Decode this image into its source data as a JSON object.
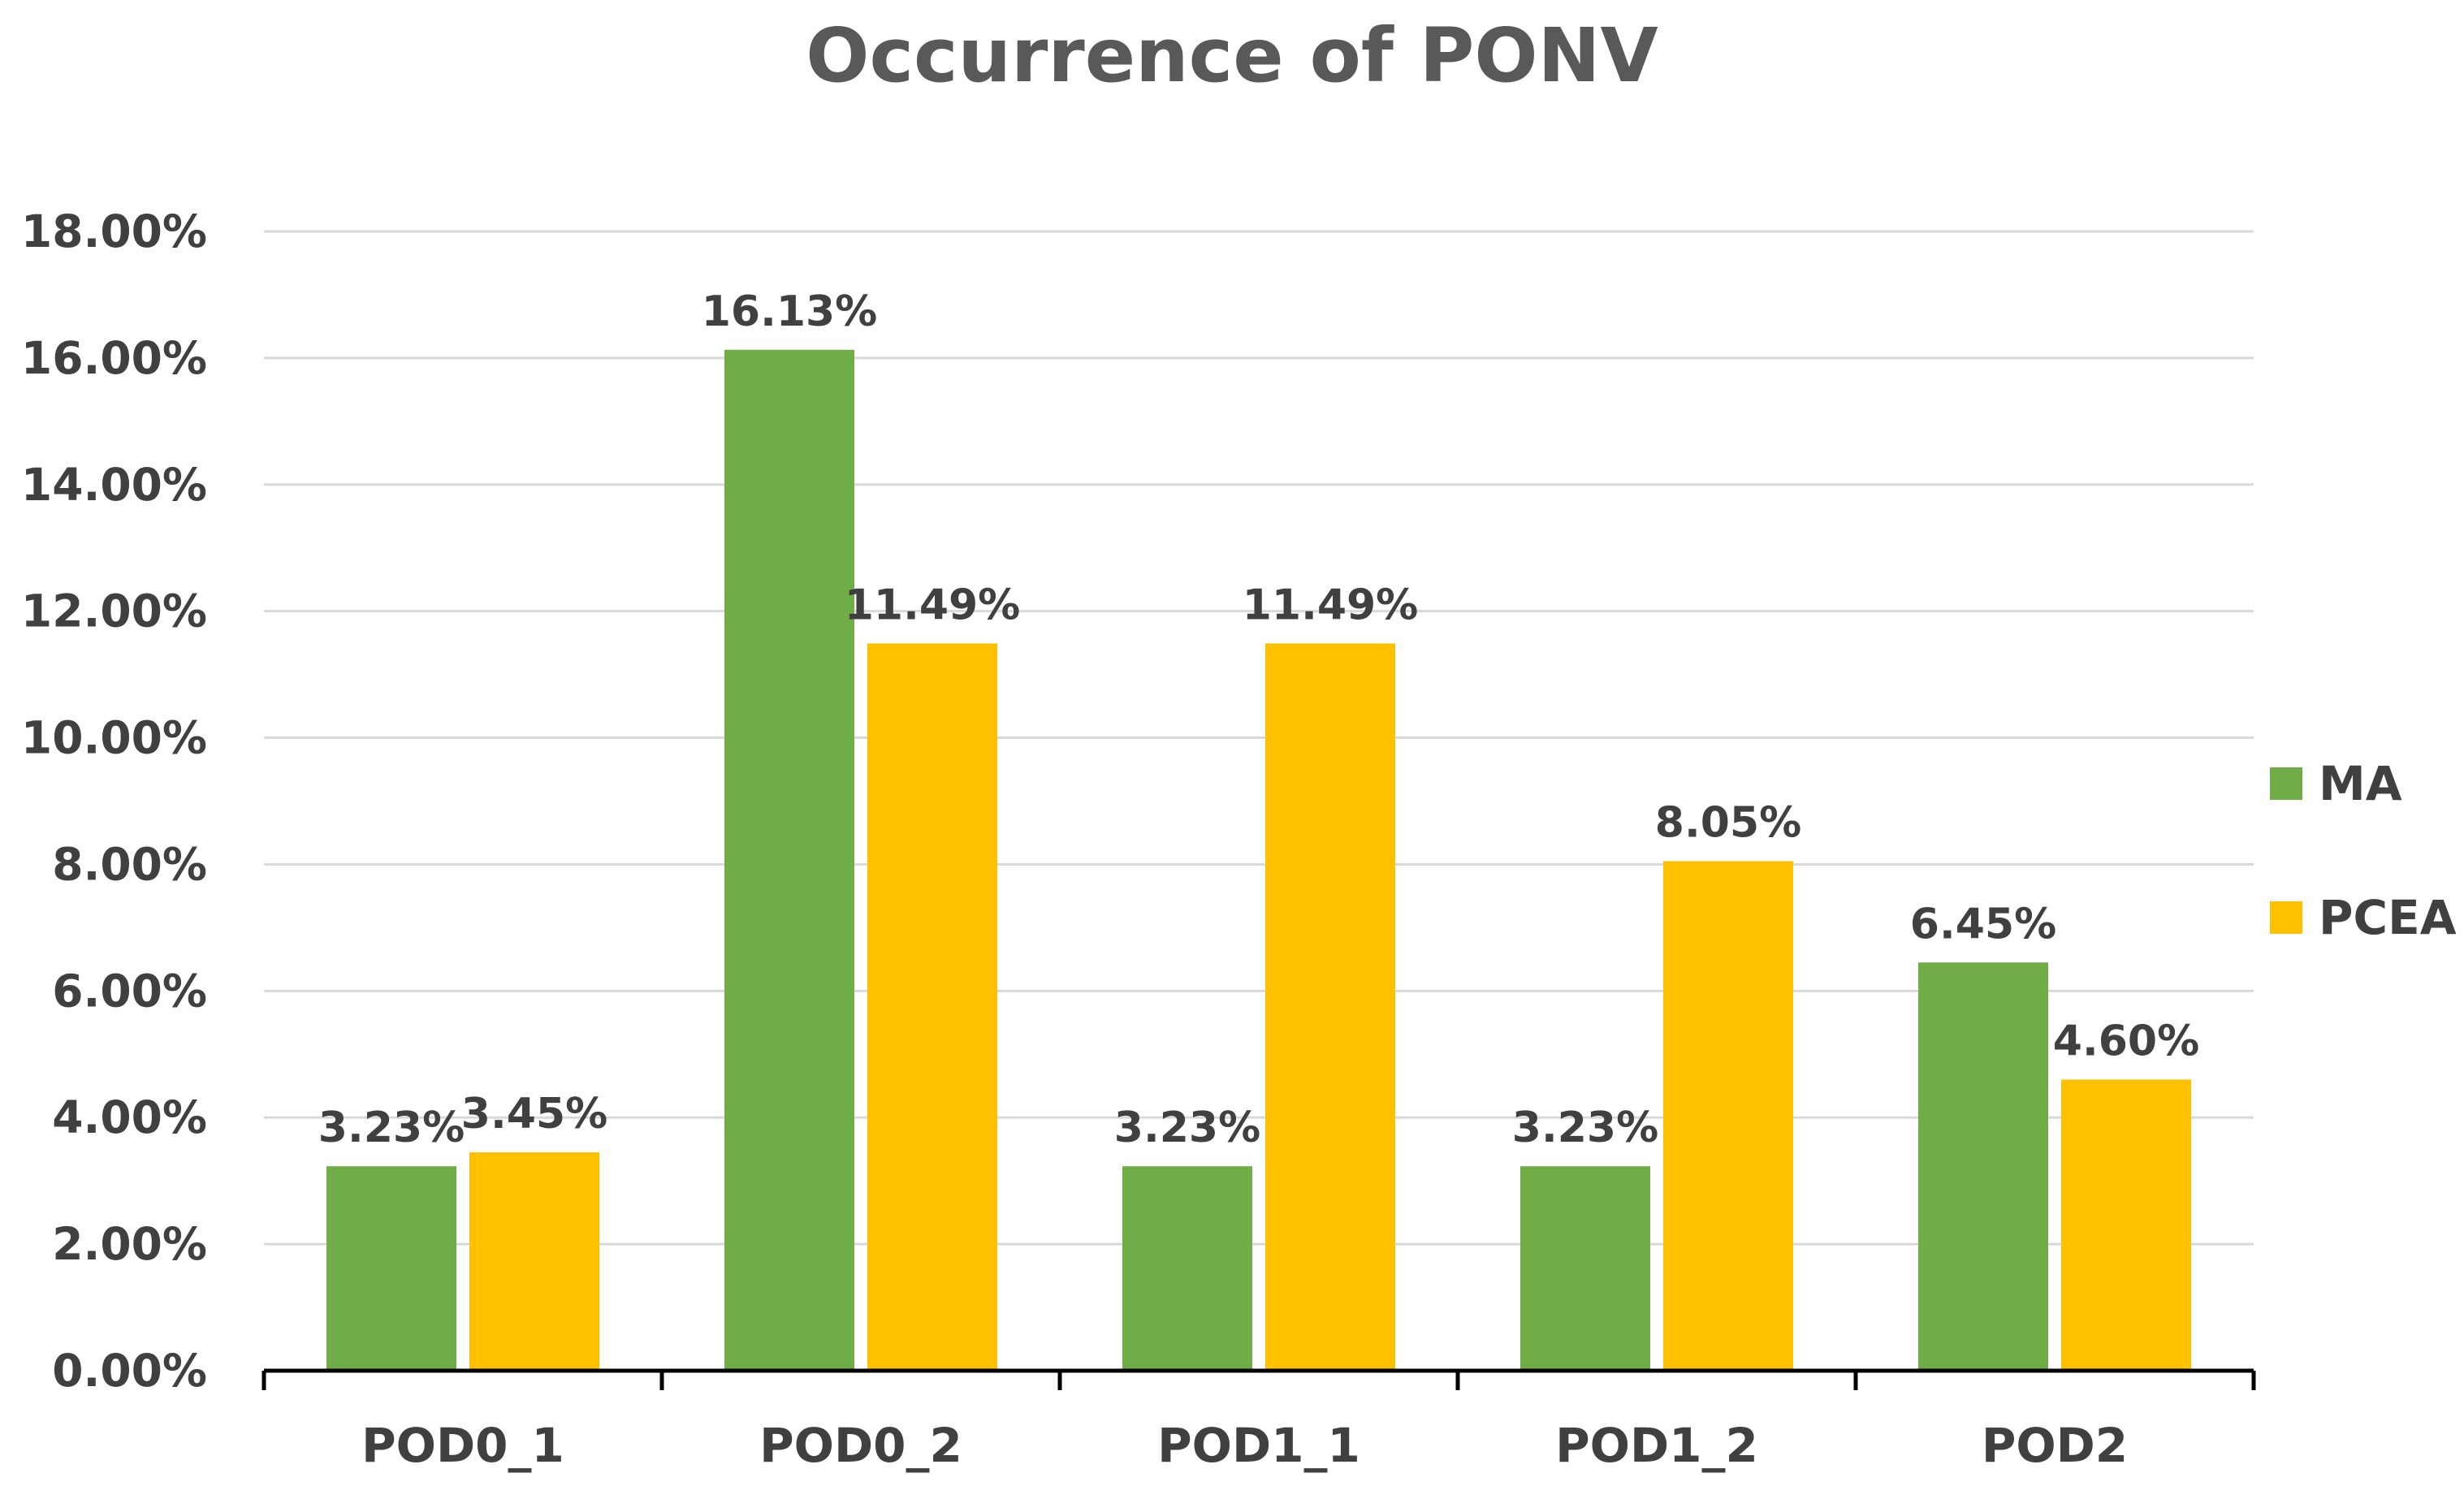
{
  "chart_data": {
    "type": "bar",
    "title": "Occurrence of PONV",
    "xlabel": "",
    "ylabel": "",
    "categories": [
      "POD0_1",
      "POD0_2",
      "POD1_1",
      "POD1_2",
      "POD2"
    ],
    "series": [
      {
        "name": "MA",
        "color": "#70ad47",
        "values": [
          3.23,
          16.13,
          3.23,
          3.23,
          6.45
        ],
        "labels": [
          "3.23%",
          "16.13%",
          "3.23%",
          "3.23%",
          "6.45%"
        ]
      },
      {
        "name": "PCEA",
        "color": "#ffc000",
        "values": [
          3.45,
          11.49,
          11.49,
          8.05,
          4.6
        ],
        "labels": [
          "3.45%",
          "11.49%",
          "11.49%",
          "8.05%",
          "4.60%"
        ]
      }
    ],
    "ylim": [
      0,
      18
    ],
    "yticks": [
      0,
      2,
      4,
      6,
      8,
      10,
      12,
      14,
      16,
      18
    ],
    "ytick_labels": [
      "0.00%",
      "2.00%",
      "4.00%",
      "6.00%",
      "8.00%",
      "10.00%",
      "12.00%",
      "14.00%",
      "16.00%",
      "18.00%"
    ],
    "grid": true,
    "legend_position": "right"
  }
}
